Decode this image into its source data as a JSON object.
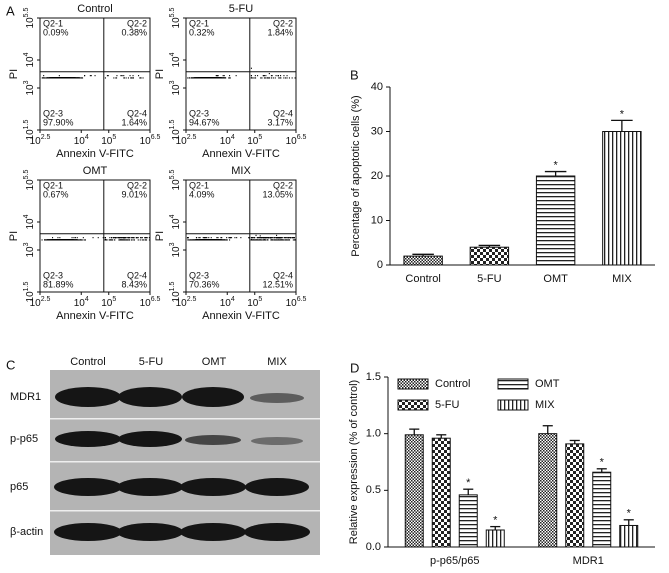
{
  "panel_labels": [
    "A",
    "B",
    "C",
    "D"
  ],
  "flow_plots": [
    {
      "title": "Control",
      "quadrants": [
        {
          "name": "Q2-1",
          "value": "0.09%"
        },
        {
          "name": "Q2-2",
          "value": "0.38%"
        },
        {
          "name": "Q2-3",
          "value": "97.90%"
        },
        {
          "name": "Q2-4",
          "value": "1.64%"
        }
      ]
    },
    {
      "title": "5-FU",
      "quadrants": [
        {
          "name": "Q2-1",
          "value": "0.32%"
        },
        {
          "name": "Q2-2",
          "value": "1.84%"
        },
        {
          "name": "Q2-3",
          "value": "94.67%"
        },
        {
          "name": "Q2-4",
          "value": "3.17%"
        }
      ]
    },
    {
      "title": "OMT",
      "quadrants": [
        {
          "name": "Q2-1",
          "value": "0.67%"
        },
        {
          "name": "Q2-2",
          "value": "9.01%"
        },
        {
          "name": "Q2-3",
          "value": "81.89%"
        },
        {
          "name": "Q2-4",
          "value": "8.43%"
        }
      ]
    },
    {
      "title": "MIX",
      "quadrants": [
        {
          "name": "Q2-1",
          "value": "4.09%"
        },
        {
          "name": "Q2-2",
          "value": "13.05%"
        },
        {
          "name": "Q2-3",
          "value": "70.36%"
        },
        {
          "name": "Q2-4",
          "value": "12.51%"
        }
      ]
    }
  ],
  "flow_axes": {
    "xlabel": "Annexin V-FITC",
    "ylabel": "PI",
    "tick_base": "10",
    "xlim": [
      2.5,
      6.5
    ],
    "xticks": [
      2.5,
      4,
      5,
      6.5
    ],
    "ylim": [
      1.5,
      5.5
    ],
    "yticks": [
      1.5,
      3,
      4,
      5.5
    ]
  },
  "blot": {
    "columns": [
      "Control",
      "5-FU",
      "OMT",
      "MIX"
    ],
    "rows": [
      "MDR1",
      "p-p65",
      "p65",
      "β-actin"
    ]
  },
  "chart_data": [
    {
      "type": "bar",
      "ylabel": "Percentage of apoptotic cells (%)",
      "categories": [
        "Control",
        "5-FU",
        "OMT",
        "MIX"
      ],
      "values": [
        2,
        4,
        20,
        30
      ],
      "errors": [
        0.4,
        0.4,
        1,
        2.5
      ],
      "significance": [
        null,
        null,
        "*",
        "*"
      ],
      "ylim": [
        0,
        40
      ],
      "yticks": [
        0,
        10,
        20,
        30,
        40
      ]
    },
    {
      "type": "grouped_bar",
      "ylabel": "Relative expression (% of control)",
      "categories": [
        "p-p65/p65",
        "MDR1"
      ],
      "series": [
        {
          "name": "Control",
          "values": [
            0.99,
            1.0
          ],
          "errors": [
            0.05,
            0.07
          ],
          "significance": [
            null,
            null
          ]
        },
        {
          "name": "5-FU",
          "values": [
            0.96,
            0.91
          ],
          "errors": [
            0.03,
            0.03
          ],
          "significance": [
            null,
            null
          ]
        },
        {
          "name": "OMT",
          "values": [
            0.46,
            0.66
          ],
          "errors": [
            0.05,
            0.03
          ],
          "significance": [
            "*",
            "*"
          ]
        },
        {
          "name": "MIX",
          "values": [
            0.15,
            0.19
          ],
          "errors": [
            0.03,
            0.05
          ],
          "significance": [
            "*",
            "*"
          ]
        }
      ],
      "ylim": [
        0,
        1.5
      ],
      "yticks": [
        {
          "value": 0,
          "label": "0.0"
        },
        {
          "value": 0.5,
          "label": "0.5"
        },
        {
          "value": 1,
          "label": "1.0"
        },
        {
          "value": 1.5,
          "label": "1.5"
        }
      ]
    }
  ]
}
